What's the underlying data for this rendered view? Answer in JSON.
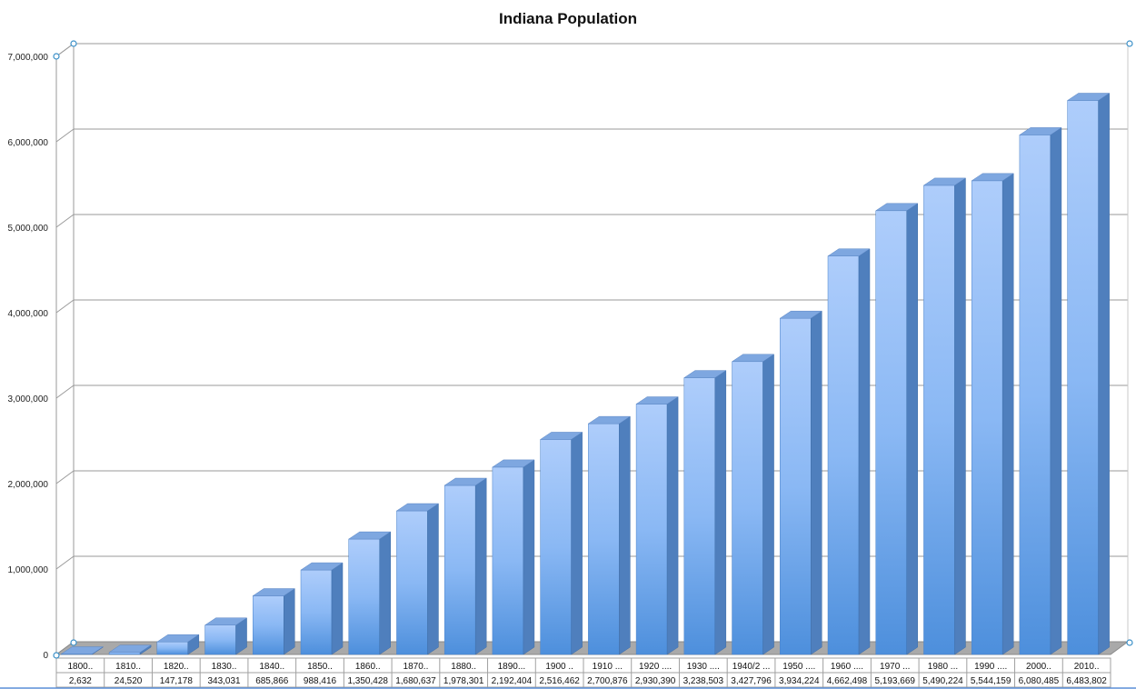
{
  "chart_data": {
    "type": "bar",
    "title": "Indiana Population",
    "xlabel": "",
    "ylabel": "",
    "ylim": [
      0,
      7000000
    ],
    "y_ticks": [
      "0",
      "1,000,000",
      "2,000,000",
      "3,000,000",
      "4,000,000",
      "5,000,000",
      "6,000,000",
      "7,000,000"
    ],
    "grid": true,
    "legend": "none",
    "style": "3d-column",
    "bar_color": "#6aa6ea",
    "categories": [
      "1800..",
      "1810..",
      "1820..",
      "1830..",
      "1840..",
      "1850..",
      "1860..",
      "1870..",
      "1880..",
      "1890...",
      "1900 ..",
      "1910 ...",
      "1920 ....",
      "1930 ....",
      "1940/2 ...",
      "1950 ....",
      "1960 ....",
      "1970 ...",
      "1980 ...",
      "1990 ....",
      "2000..",
      "2010.."
    ],
    "value_labels": [
      "2,632",
      "24,520",
      "147,178",
      "343,031",
      "685,866",
      "988,416",
      "1,350,428",
      "1,680,637",
      "1,978,301",
      "2,192,404",
      "2,516,462",
      "2,700,876",
      "2,930,390",
      "3,238,503",
      "3,427,796",
      "3,934,224",
      "4,662,498",
      "5,193,669",
      "5,490,224",
      "5,544,159",
      "6,080,485",
      "6,483,802"
    ],
    "values": [
      2632,
      24520,
      147178,
      343031,
      685866,
      988416,
      1350428,
      1680637,
      1978301,
      2192404,
      2516462,
      2700876,
      2930390,
      3238503,
      3427796,
      3934224,
      4662498,
      5193669,
      5490224,
      5544159,
      6080485,
      6483802
    ]
  }
}
